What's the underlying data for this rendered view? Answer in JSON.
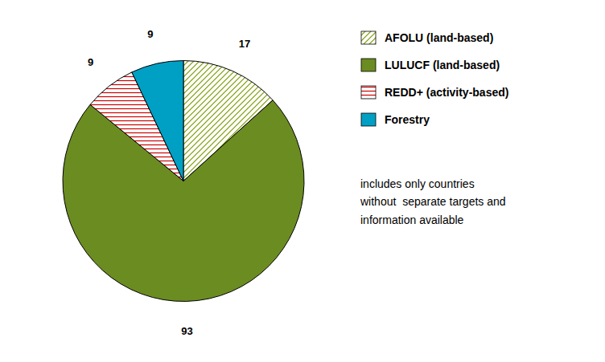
{
  "chart_data": {
    "type": "pie",
    "categories": [
      "AFOLU (land-based)",
      "LULUCF (land-based)",
      "REDD+ (activity-based)",
      "Forestry"
    ],
    "values": [
      17,
      93,
      9,
      9
    ],
    "colors": [
      "#7a9a00",
      "#6b8c21",
      "#cc0000",
      "#00a0c4"
    ],
    "data_labels": true,
    "legend": "right",
    "annotation": "includes only countries\nwithout  separate targets and\ninformation available"
  }
}
